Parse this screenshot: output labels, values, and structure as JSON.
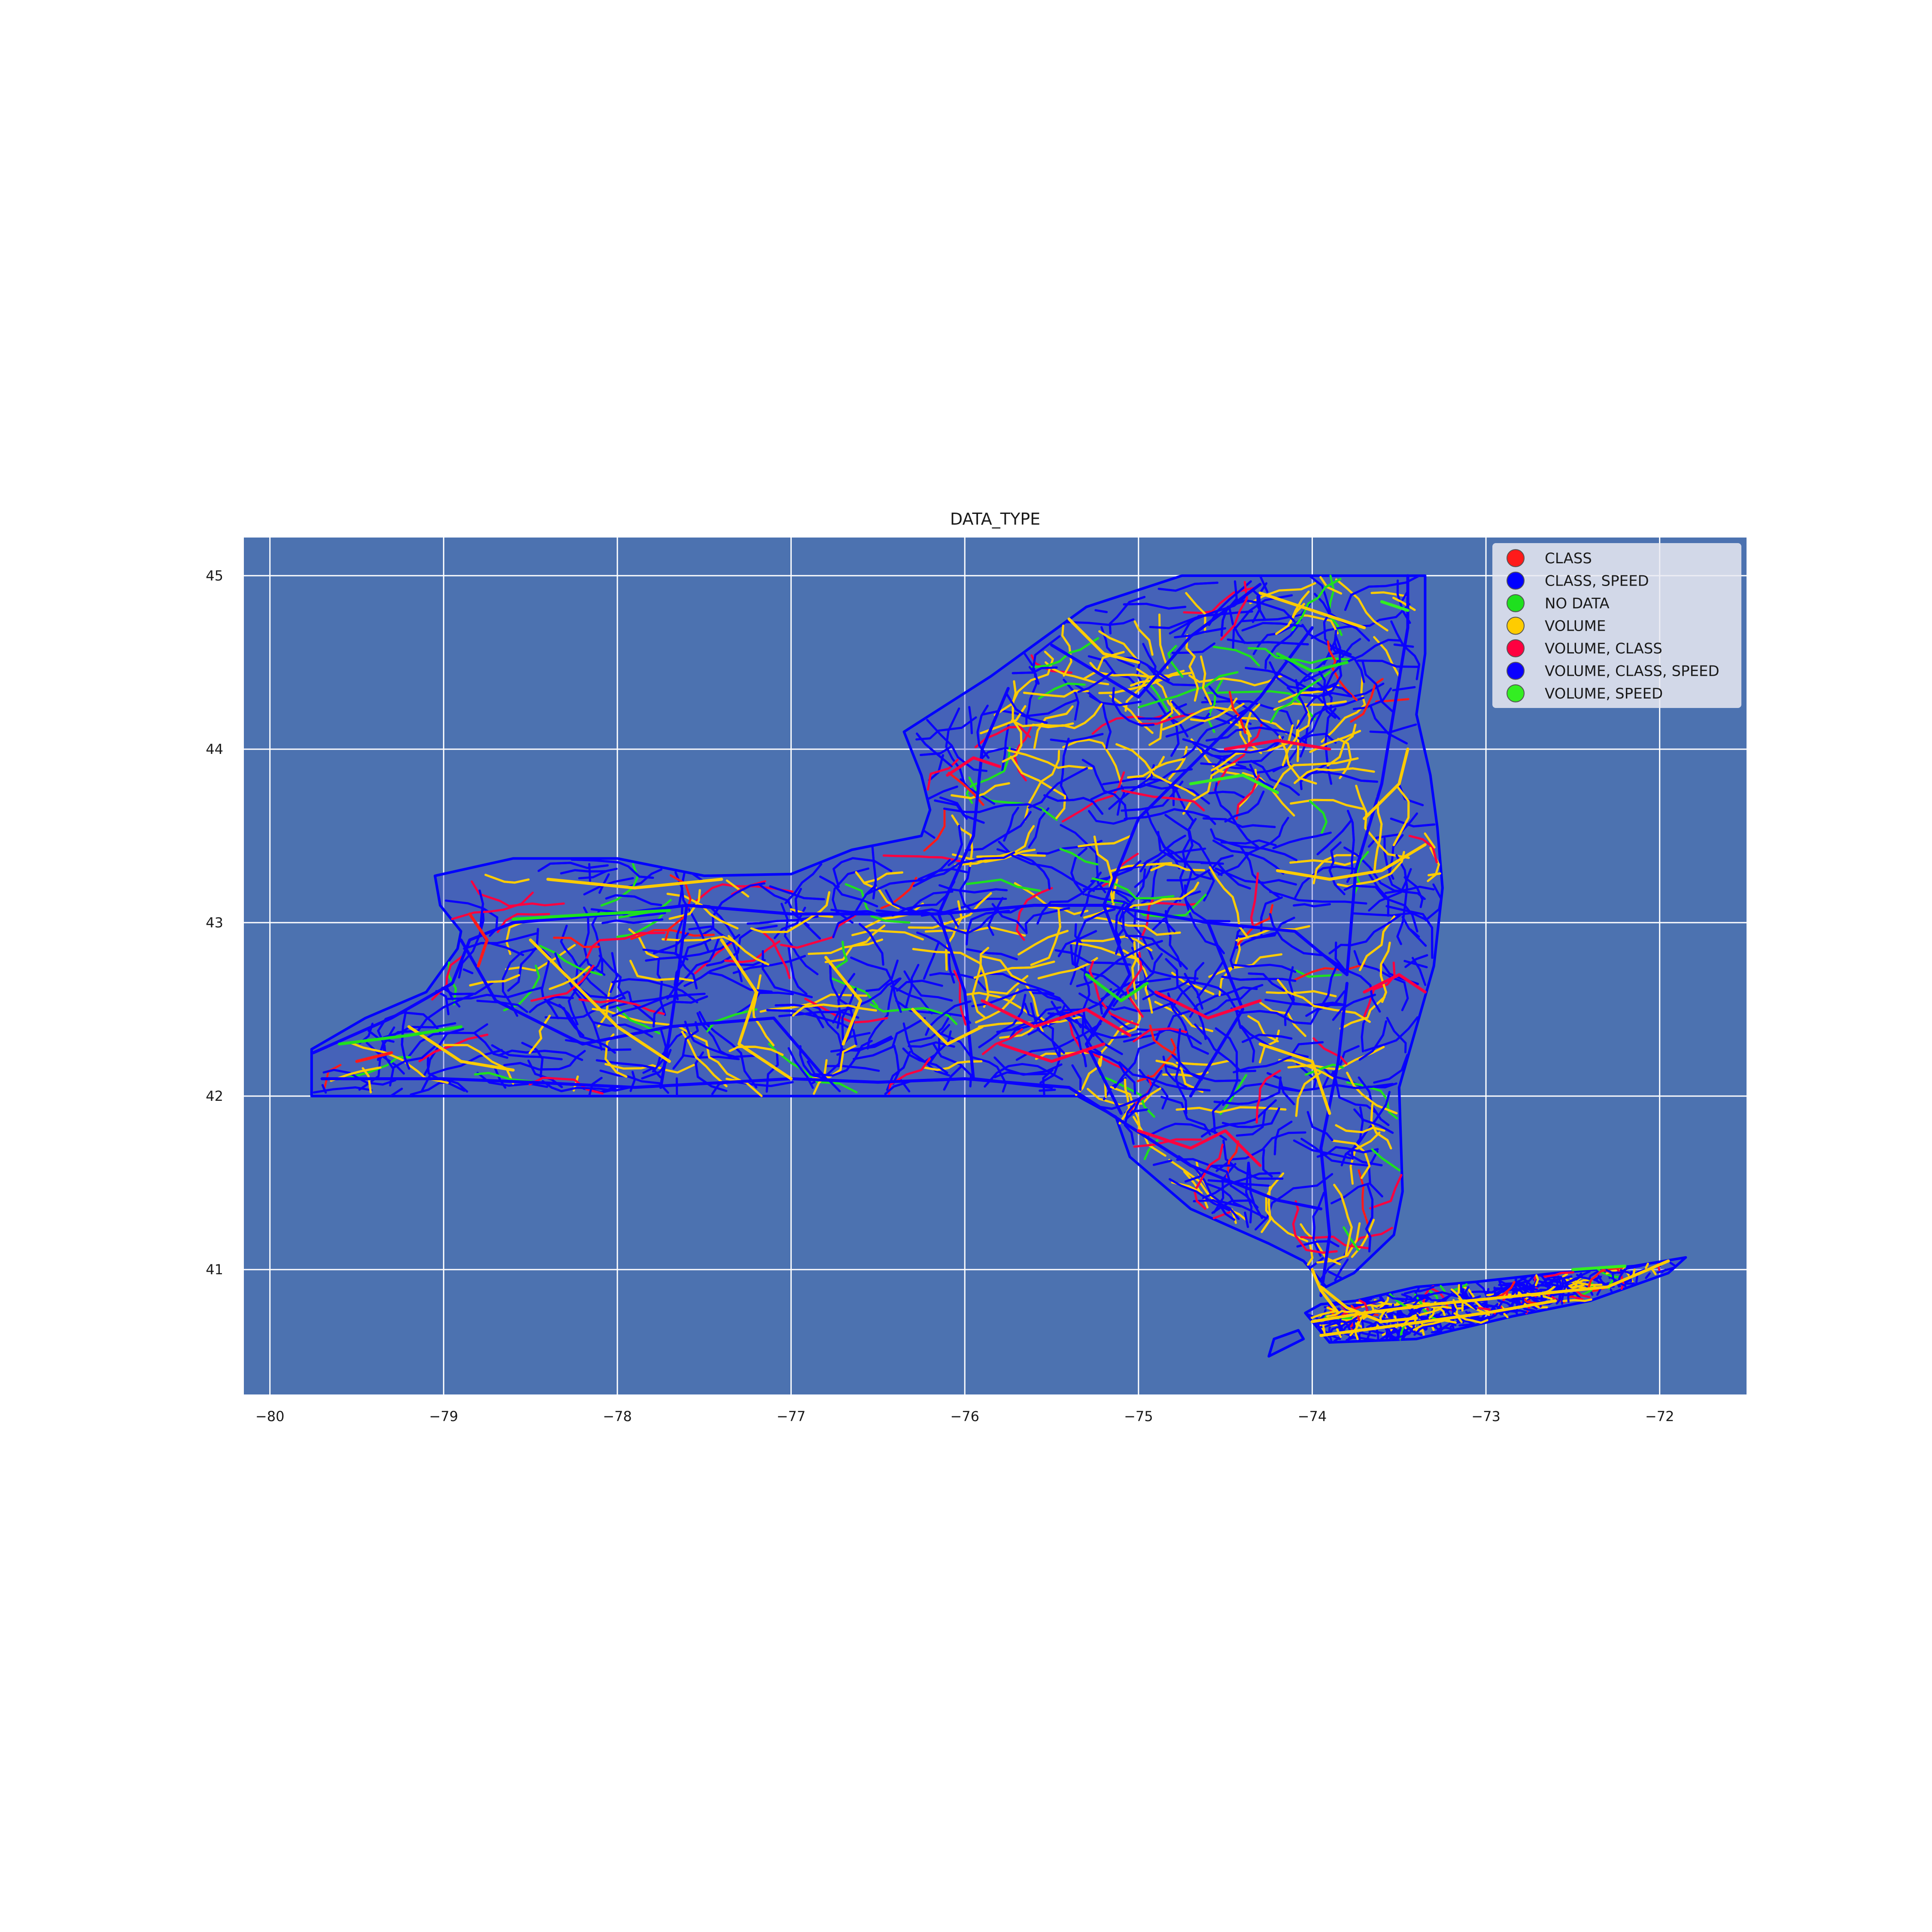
{
  "title": "DATA_TYPE",
  "colors": {
    "panel_bg": "#4c72b0",
    "grid": "#ffffff",
    "land": "#4c72b0",
    "coast": "#0000ff",
    "legend_bg": "#eaeaf2"
  },
  "axes": {
    "xlim": [
      -80.15,
      -71.5
    ],
    "ylim": [
      40.28,
      45.22
    ],
    "xticks": [
      -80,
      -79,
      -78,
      -77,
      -76,
      -75,
      -74,
      -73,
      -72
    ],
    "xtick_labels": [
      "−80",
      "−79",
      "−78",
      "−77",
      "−76",
      "−75",
      "−74",
      "−73",
      "−72"
    ],
    "yticks": [
      41,
      42,
      43,
      44,
      45
    ],
    "ytick_labels": [
      "41",
      "42",
      "43",
      "44",
      "45"
    ],
    "grid": true
  },
  "legend": {
    "placement": "top-right",
    "entries": [
      {
        "label": "CLASS",
        "color": "#ff1a1a"
      },
      {
        "label": "CLASS, SPEED",
        "color": "#0000ff"
      },
      {
        "label": "NO DATA",
        "color": "#1ee01e"
      },
      {
        "label": "VOLUME",
        "color": "#ffcc00"
      },
      {
        "label": "VOLUME, CLASS",
        "color": "#ff0040"
      },
      {
        "label": "VOLUME, CLASS, SPEED",
        "color": "#0a00ff"
      },
      {
        "label": "VOLUME, SPEED",
        "color": "#33ee22"
      }
    ]
  },
  "map_data": {
    "mainland_outline": [
      [
        -79.76,
        42.0
      ],
      [
        -79.76,
        42.27
      ],
      [
        -79.45,
        42.45
      ],
      [
        -79.1,
        42.6
      ],
      [
        -78.92,
        42.85
      ],
      [
        -78.9,
        42.95
      ],
      [
        -79.02,
        43.1
      ],
      [
        -79.05,
        43.27
      ],
      [
        -78.6,
        43.37
      ],
      [
        -78.0,
        43.37
      ],
      [
        -77.5,
        43.27
      ],
      [
        -77.0,
        43.28
      ],
      [
        -76.65,
        43.42
      ],
      [
        -76.25,
        43.5
      ],
      [
        -76.2,
        43.65
      ],
      [
        -76.25,
        43.85
      ],
      [
        -76.35,
        44.1
      ],
      [
        -75.85,
        44.42
      ],
      [
        -75.3,
        44.82
      ],
      [
        -74.75,
        45.0
      ],
      [
        -73.35,
        45.0
      ],
      [
        -73.35,
        44.55
      ],
      [
        -73.4,
        44.2
      ],
      [
        -73.32,
        43.85
      ],
      [
        -73.28,
        43.55
      ],
      [
        -73.25,
        43.2
      ],
      [
        -73.3,
        42.75
      ],
      [
        -73.5,
        42.05
      ],
      [
        -73.48,
        41.45
      ],
      [
        -73.53,
        41.2
      ],
      [
        -73.76,
        40.98
      ],
      [
        -73.92,
        40.9
      ],
      [
        -74.05,
        41.05
      ],
      [
        -74.25,
        41.15
      ],
      [
        -74.7,
        41.35
      ],
      [
        -75.05,
        41.65
      ],
      [
        -75.13,
        41.88
      ],
      [
        -75.35,
        42.0
      ],
      [
        -79.76,
        42.0
      ]
    ],
    "long_island_outline": [
      [
        -74.04,
        40.75
      ],
      [
        -73.9,
        40.58
      ],
      [
        -73.4,
        40.6
      ],
      [
        -72.85,
        40.73
      ],
      [
        -72.4,
        40.82
      ],
      [
        -71.95,
        40.98
      ],
      [
        -71.85,
        41.07
      ],
      [
        -72.15,
        41.02
      ],
      [
        -72.6,
        40.98
      ],
      [
        -73.05,
        40.93
      ],
      [
        -73.4,
        40.9
      ],
      [
        -73.75,
        40.82
      ],
      [
        -73.95,
        40.8
      ],
      [
        -74.04,
        40.75
      ]
    ],
    "staten_island_outline": [
      [
        -74.25,
        40.5
      ],
      [
        -74.05,
        40.6
      ],
      [
        -74.08,
        40.65
      ],
      [
        -74.22,
        40.6
      ],
      [
        -74.25,
        40.5
      ]
    ],
    "roads": [
      {
        "type": "VOLUME, CLASS, SPEED",
        "path": [
          [
            -79.75,
            42.25
          ],
          [
            -79.3,
            42.45
          ],
          [
            -78.95,
            42.65
          ],
          [
            -78.85,
            42.9
          ],
          [
            -78.6,
            43.0
          ],
          [
            -78.0,
            43.05
          ],
          [
            -77.6,
            43.1
          ],
          [
            -77.0,
            43.05
          ],
          [
            -76.5,
            43.05
          ],
          [
            -76.15,
            43.05
          ],
          [
            -75.6,
            43.1
          ],
          [
            -75.2,
            43.1
          ],
          [
            -74.6,
            43.0
          ],
          [
            -74.1,
            42.95
          ],
          [
            -73.8,
            42.7
          ]
        ]
      },
      {
        "type": "VOLUME, CLASS, SPEED",
        "path": [
          [
            -73.8,
            42.65
          ],
          [
            -73.85,
            42.2
          ],
          [
            -73.95,
            41.7
          ],
          [
            -73.9,
            41.2
          ],
          [
            -73.95,
            40.85
          ]
        ]
      },
      {
        "type": "VOLUME, CLASS, SPEED",
        "path": [
          [
            -76.15,
            43.05
          ],
          [
            -75.95,
            43.5
          ],
          [
            -75.9,
            44.0
          ],
          [
            -75.75,
            44.35
          ]
        ]
      },
      {
        "type": "VOLUME, CLASS, SPEED",
        "path": [
          [
            -73.8,
            42.7
          ],
          [
            -73.75,
            43.3
          ],
          [
            -73.6,
            43.8
          ],
          [
            -73.45,
            44.7
          ],
          [
            -73.45,
            45.0
          ]
        ]
      },
      {
        "type": "VOLUME, CLASS, SPEED",
        "path": [
          [
            -76.15,
            43.05
          ],
          [
            -76.0,
            42.6
          ],
          [
            -75.95,
            42.1
          ],
          [
            -75.5,
            42.05
          ]
        ]
      },
      {
        "type": "VOLUME, CLASS, SPEED",
        "path": [
          [
            -79.7,
            42.1
          ],
          [
            -79.0,
            42.1
          ],
          [
            -78.5,
            42.08
          ],
          [
            -77.9,
            42.05
          ],
          [
            -77.0,
            42.1
          ],
          [
            -76.5,
            42.08
          ],
          [
            -76.0,
            42.1
          ],
          [
            -75.4,
            42.05
          ],
          [
            -74.7,
            41.6
          ],
          [
            -74.2,
            41.4
          ],
          [
            -73.95,
            41.35
          ]
        ]
      },
      {
        "type": "VOLUME, CLASS, SPEED",
        "path": [
          [
            -78.9,
            42.9
          ],
          [
            -78.7,
            42.55
          ],
          [
            -78.2,
            42.3
          ],
          [
            -77.7,
            42.4
          ],
          [
            -77.1,
            42.45
          ],
          [
            -76.8,
            42.1
          ]
        ]
      },
      {
        "type": "VOLUME, CLASS, SPEED",
        "path": [
          [
            -77.6,
            43.1
          ],
          [
            -77.65,
            42.7
          ],
          [
            -77.7,
            42.35
          ],
          [
            -77.75,
            42.05
          ]
        ]
      },
      {
        "type": "VOLUME, CLASS, SPEED",
        "path": [
          [
            -75.2,
            43.1
          ],
          [
            -75.0,
            43.6
          ],
          [
            -74.6,
            44.0
          ],
          [
            -74.3,
            44.3
          ],
          [
            -74.0,
            44.7
          ]
        ]
      },
      {
        "type": "VOLUME, CLASS, SPEED",
        "path": [
          [
            -75.5,
            44.6
          ],
          [
            -75.0,
            44.3
          ],
          [
            -74.7,
            44.65
          ],
          [
            -74.3,
            44.95
          ]
        ]
      },
      {
        "type": "VOLUME, CLASS, SPEED",
        "path": [
          [
            -75.2,
            43.1
          ],
          [
            -75.05,
            42.7
          ],
          [
            -75.3,
            42.3
          ],
          [
            -75.1,
            41.9
          ]
        ]
      },
      {
        "type": "VOLUME, CLASS, SPEED",
        "path": [
          [
            -74.6,
            43.0
          ],
          [
            -74.4,
            42.5
          ],
          [
            -74.7,
            42.0
          ]
        ]
      },
      {
        "type": "VOLUME",
        "path": [
          [
            -78.5,
            42.9
          ],
          [
            -78.2,
            42.6
          ],
          [
            -78.0,
            42.4
          ],
          [
            -77.7,
            42.2
          ]
        ]
      },
      {
        "type": "VOLUME",
        "path": [
          [
            -77.4,
            42.9
          ],
          [
            -77.2,
            42.6
          ],
          [
            -77.3,
            42.3
          ],
          [
            -77.0,
            42.1
          ]
        ]
      },
      {
        "type": "VOLUME",
        "path": [
          [
            -78.4,
            43.25
          ],
          [
            -77.9,
            43.2
          ],
          [
            -77.4,
            43.25
          ]
        ]
      },
      {
        "type": "VOLUME",
        "path": [
          [
            -76.8,
            42.8
          ],
          [
            -76.6,
            42.55
          ],
          [
            -76.7,
            42.3
          ]
        ]
      },
      {
        "type": "VOLUME",
        "path": [
          [
            -74.2,
            43.3
          ],
          [
            -73.9,
            43.25
          ],
          [
            -73.6,
            43.3
          ],
          [
            -73.35,
            43.45
          ]
        ]
      },
      {
        "type": "VOLUME",
        "path": [
          [
            -74.3,
            44.9
          ],
          [
            -74.0,
            44.8
          ],
          [
            -73.7,
            44.7
          ]
        ]
      },
      {
        "type": "VOLUME",
        "path": [
          [
            -75.4,
            44.75
          ],
          [
            -75.2,
            44.55
          ],
          [
            -75.0,
            44.5
          ]
        ]
      },
      {
        "type": "VOLUME",
        "path": [
          [
            -74.3,
            42.3
          ],
          [
            -74.0,
            42.2
          ],
          [
            -73.9,
            41.9
          ]
        ]
      },
      {
        "type": "VOLUME",
        "path": [
          [
            -79.2,
            42.4
          ],
          [
            -78.9,
            42.2
          ],
          [
            -78.6,
            42.15
          ]
        ]
      },
      {
        "type": "VOLUME",
        "path": [
          [
            -74.0,
            40.7
          ],
          [
            -73.7,
            40.75
          ],
          [
            -73.3,
            40.8
          ],
          [
            -72.8,
            40.85
          ],
          [
            -72.3,
            40.9
          ],
          [
            -71.95,
            41.05
          ]
        ]
      },
      {
        "type": "VOLUME",
        "path": [
          [
            -73.95,
            40.62
          ],
          [
            -73.5,
            40.68
          ],
          [
            -73.0,
            40.75
          ],
          [
            -72.6,
            40.82
          ]
        ]
      },
      {
        "type": "VOLUME",
        "path": [
          [
            -73.95,
            40.9
          ],
          [
            -73.8,
            40.78
          ],
          [
            -73.6,
            40.7
          ],
          [
            -73.4,
            40.72
          ]
        ]
      },
      {
        "type": "VOLUME",
        "path": [
          [
            -74.0,
            41.0
          ],
          [
            -73.95,
            40.88
          ],
          [
            -73.85,
            40.75
          ]
        ]
      },
      {
        "type": "VOLUME",
        "path": [
          [
            -76.3,
            42.5
          ],
          [
            -76.1,
            42.3
          ],
          [
            -75.9,
            42.4
          ]
        ]
      },
      {
        "type": "VOLUME",
        "path": [
          [
            -73.7,
            43.6
          ],
          [
            -73.5,
            43.8
          ],
          [
            -73.45,
            44.0
          ]
        ]
      },
      {
        "type": "VOLUME, CLASS",
        "path": [
          [
            -75.9,
            42.55
          ],
          [
            -75.6,
            42.4
          ],
          [
            -75.3,
            42.5
          ],
          [
            -75.05,
            42.35
          ]
        ]
      },
      {
        "type": "VOLUME, CLASS",
        "path": [
          [
            -75.8,
            42.3
          ],
          [
            -75.5,
            42.2
          ],
          [
            -75.2,
            42.3
          ]
        ]
      },
      {
        "type": "VOLUME, CLASS",
        "path": [
          [
            -75.0,
            41.8
          ],
          [
            -74.7,
            41.7
          ],
          [
            -74.5,
            41.8
          ],
          [
            -74.3,
            41.6
          ]
        ]
      },
      {
        "type": "VOLUME, CLASS",
        "path": [
          [
            -76.1,
            43.85
          ],
          [
            -75.95,
            43.95
          ],
          [
            -75.8,
            43.9
          ]
        ]
      },
      {
        "type": "VOLUME, CLASS",
        "path": [
          [
            -74.9,
            42.6
          ],
          [
            -74.6,
            42.45
          ],
          [
            -74.3,
            42.55
          ]
        ]
      },
      {
        "type": "VOLUME, CLASS",
        "path": [
          [
            -73.7,
            42.6
          ],
          [
            -73.5,
            42.7
          ],
          [
            -73.35,
            42.6
          ]
        ]
      },
      {
        "type": "VOLUME, CLASS",
        "path": [
          [
            -74.5,
            44.0
          ],
          [
            -74.2,
            44.05
          ],
          [
            -73.9,
            44.0
          ]
        ]
      },
      {
        "type": "CLASS",
        "path": [
          [
            -78.85,
            43.05
          ],
          [
            -78.75,
            42.9
          ],
          [
            -78.8,
            42.75
          ]
        ]
      },
      {
        "type": "CLASS",
        "path": [
          [
            -79.5,
            42.2
          ],
          [
            -79.3,
            42.25
          ]
        ]
      },
      {
        "type": "NO DATA",
        "path": [
          [
            -79.6,
            42.3
          ],
          [
            -79.2,
            42.35
          ],
          [
            -78.9,
            42.4
          ]
        ]
      },
      {
        "type": "NO DATA",
        "path": [
          [
            -74.2,
            44.55
          ],
          [
            -74.0,
            44.45
          ],
          [
            -73.8,
            44.5
          ]
        ]
      },
      {
        "type": "NO DATA",
        "path": [
          [
            -75.3,
            42.7
          ],
          [
            -75.1,
            42.55
          ],
          [
            -74.95,
            42.65
          ]
        ]
      },
      {
        "type": "NO DATA",
        "path": [
          [
            -78.6,
            43.02
          ],
          [
            -78.1,
            43.05
          ],
          [
            -77.7,
            43.07
          ]
        ]
      },
      {
        "type": "VOLUME, SPEED",
        "path": [
          [
            -74.7,
            43.8
          ],
          [
            -74.4,
            43.85
          ],
          [
            -74.2,
            43.75
          ]
        ]
      },
      {
        "type": "VOLUME, SPEED",
        "path": [
          [
            -73.6,
            44.85
          ],
          [
            -73.45,
            44.8
          ]
        ]
      },
      {
        "type": "VOLUME, SPEED",
        "path": [
          [
            -72.5,
            41.0
          ],
          [
            -72.2,
            41.02
          ]
        ]
      }
    ]
  }
}
